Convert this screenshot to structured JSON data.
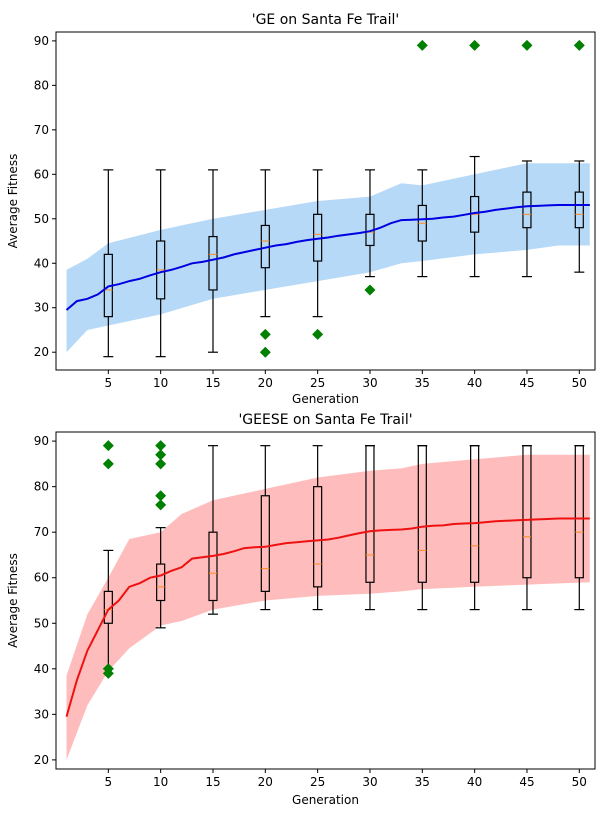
{
  "chart_data": [
    {
      "type": "line",
      "title": "'GE on Santa Fe Trail'",
      "xlabel": "Generation",
      "ylabel": "Average Fitness",
      "xlim": [
        0,
        51.5
      ],
      "ylim": [
        16,
        92
      ],
      "xticks": [
        5,
        10,
        15,
        20,
        25,
        30,
        35,
        40,
        45,
        50
      ],
      "yticks": [
        20,
        30,
        40,
        50,
        60,
        70,
        80,
        90
      ],
      "grid": false,
      "colors": {
        "line": "#0000e0",
        "band": "#99c9f5",
        "outlier": "#008000",
        "box": "#000000",
        "median": "#ff8c1a"
      },
      "series": [
        {
          "kind": "mean-line",
          "x": [
            1,
            2,
            3,
            4,
            5,
            6,
            7,
            8,
            9,
            10,
            11,
            12,
            13,
            14,
            15,
            16,
            17,
            18,
            19,
            20,
            21,
            22,
            23,
            24,
            25,
            26,
            27,
            28,
            29,
            30,
            31,
            32,
            33,
            34,
            35,
            36,
            37,
            38,
            39,
            40,
            41,
            42,
            43,
            44,
            45,
            46,
            47,
            48,
            49,
            50,
            51
          ],
          "values": [
            29.5,
            31.5,
            32,
            33,
            34.8,
            35.3,
            36,
            36.5,
            37.3,
            38,
            38.5,
            39.2,
            40,
            40.3,
            40.8,
            41.3,
            42,
            42.5,
            43,
            43.5,
            44,
            44.3,
            44.8,
            45.2,
            45.5,
            45.8,
            46.2,
            46.5,
            46.8,
            47.2,
            48,
            49,
            49.7,
            49.8,
            49.9,
            50,
            50.3,
            50.5,
            50.9,
            51.3,
            51.6,
            52,
            52.3,
            52.6,
            52.8,
            52.9,
            53,
            53.1,
            53.1,
            53.1,
            53.1
          ]
        },
        {
          "kind": "band",
          "x": [
            1,
            3,
            5,
            10,
            15,
            20,
            25,
            30,
            33,
            35,
            40,
            45,
            48,
            51
          ],
          "upper": [
            38.5,
            41,
            44.5,
            47.5,
            50,
            52,
            54,
            55,
            58,
            57.5,
            60,
            62.5,
            62.5,
            62.5
          ],
          "lower": [
            20,
            25,
            26,
            28.5,
            32,
            34,
            36,
            38,
            40,
            40.5,
            42,
            43,
            44,
            44
          ]
        }
      ],
      "boxes": [
        {
          "x": 5,
          "whislo": 19,
          "q1": 28,
          "med": 34,
          "q3": 42,
          "whishi": 61
        },
        {
          "x": 10,
          "whislo": 19,
          "q1": 32,
          "med": 38.5,
          "q3": 45,
          "whishi": 61
        },
        {
          "x": 15,
          "whislo": 20,
          "q1": 34,
          "med": 42,
          "q3": 46,
          "whishi": 61
        },
        {
          "x": 20,
          "whislo": 28,
          "q1": 39,
          "med": 45,
          "q3": 48.5,
          "whishi": 61
        },
        {
          "x": 25,
          "whislo": 28,
          "q1": 40.5,
          "med": 46.5,
          "q3": 51,
          "whishi": 61
        },
        {
          "x": 30,
          "whislo": 37,
          "q1": 44,
          "med": 47,
          "q3": 51,
          "whishi": 61
        },
        {
          "x": 35,
          "whislo": 37,
          "q1": 45,
          "med": 49,
          "q3": 53,
          "whishi": 61
        },
        {
          "x": 40,
          "whislo": 37,
          "q1": 47,
          "med": 51,
          "q3": 55,
          "whishi": 64
        },
        {
          "x": 45,
          "whislo": 37,
          "q1": 48,
          "med": 51,
          "q3": 56,
          "whishi": 63
        },
        {
          "x": 50,
          "whislo": 38,
          "q1": 48,
          "med": 51,
          "q3": 56,
          "whishi": 63
        }
      ],
      "outliers": [
        {
          "x": 20,
          "y": 24
        },
        {
          "x": 20,
          "y": 20
        },
        {
          "x": 25,
          "y": 24
        },
        {
          "x": 30,
          "y": 34
        },
        {
          "x": 35,
          "y": 89
        },
        {
          "x": 40,
          "y": 89
        },
        {
          "x": 45,
          "y": 89
        },
        {
          "x": 50,
          "y": 89
        }
      ]
    },
    {
      "type": "line",
      "title": "'GEESE on Santa Fe Trail'",
      "xlabel": "Generation",
      "ylabel": "Average Fitness",
      "xlim": [
        0,
        51.5
      ],
      "ylim": [
        18,
        92
      ],
      "xticks": [
        5,
        10,
        15,
        20,
        25,
        30,
        35,
        40,
        45,
        50
      ],
      "yticks": [
        20,
        30,
        40,
        50,
        60,
        70,
        80,
        90
      ],
      "grid": false,
      "colors": {
        "line": "#ee1111",
        "band": "#ffa0a0",
        "outlier": "#008000",
        "box": "#000000",
        "median": "#ff8c1a"
      },
      "series": [
        {
          "kind": "mean-line",
          "x": [
            1,
            2,
            3,
            4,
            5,
            6,
            7,
            8,
            9,
            10,
            11,
            12,
            13,
            14,
            15,
            16,
            17,
            18,
            19,
            20,
            21,
            22,
            23,
            24,
            25,
            26,
            27,
            28,
            29,
            30,
            31,
            32,
            33,
            34,
            35,
            36,
            37,
            38,
            39,
            40,
            41,
            42,
            43,
            44,
            45,
            46,
            47,
            48,
            49,
            50,
            51
          ],
          "values": [
            29.5,
            37.5,
            44,
            48.5,
            53,
            55,
            58,
            58.8,
            60,
            60.5,
            61.5,
            62.3,
            64.2,
            64.5,
            64.8,
            65.2,
            65.8,
            66.5,
            66.7,
            66.8,
            67.2,
            67.6,
            67.8,
            68,
            68.2,
            68.4,
            68.8,
            69.3,
            69.8,
            70.2,
            70.4,
            70.5,
            70.6,
            70.8,
            71.2,
            71.4,
            71.5,
            71.8,
            71.9,
            72,
            72.2,
            72.4,
            72.5,
            72.6,
            72.7,
            72.8,
            72.9,
            73,
            73,
            73,
            73
          ]
        },
        {
          "kind": "band",
          "x": [
            1,
            3,
            5,
            7,
            10,
            12,
            15,
            20,
            25,
            30,
            33,
            35,
            40,
            45,
            51
          ],
          "upper": [
            38.5,
            52,
            60,
            68.5,
            70,
            74,
            77,
            79.5,
            82,
            83.5,
            84,
            85,
            86,
            87,
            87
          ],
          "lower": [
            20,
            32,
            39.5,
            44.5,
            49.5,
            50.5,
            53,
            55,
            56,
            56.5,
            57,
            57.5,
            58,
            58.5,
            59
          ]
        }
      ],
      "boxes": [
        {
          "x": 5,
          "whislo": 40,
          "q1": 50,
          "med": 53,
          "q3": 57,
          "whishi": 66
        },
        {
          "x": 10,
          "whislo": 49,
          "q1": 55,
          "med": 58,
          "q3": 63,
          "whishi": 71
        },
        {
          "x": 15,
          "whislo": 52,
          "q1": 55,
          "med": 61,
          "q3": 70,
          "whishi": 89
        },
        {
          "x": 20,
          "whislo": 53,
          "q1": 57,
          "med": 62,
          "q3": 78,
          "whishi": 89
        },
        {
          "x": 25,
          "whislo": 53,
          "q1": 58,
          "med": 63,
          "q3": 80,
          "whishi": 89
        },
        {
          "x": 30,
          "whislo": 53,
          "q1": 59,
          "med": 65,
          "q3": 89,
          "whishi": 89
        },
        {
          "x": 35,
          "whislo": 53,
          "q1": 59,
          "med": 66,
          "q3": 89,
          "whishi": 89
        },
        {
          "x": 40,
          "whislo": 53,
          "q1": 59,
          "med": 67,
          "q3": 89,
          "whishi": 89
        },
        {
          "x": 45,
          "whislo": 53,
          "q1": 60,
          "med": 69,
          "q3": 89,
          "whishi": 89
        },
        {
          "x": 50,
          "whislo": 53,
          "q1": 60,
          "med": 70,
          "q3": 89,
          "whishi": 89
        }
      ],
      "outliers": [
        {
          "x": 5,
          "y": 89
        },
        {
          "x": 5,
          "y": 85
        },
        {
          "x": 5,
          "y": 40
        },
        {
          "x": 5,
          "y": 39
        },
        {
          "x": 10,
          "y": 89
        },
        {
          "x": 10,
          "y": 87
        },
        {
          "x": 10,
          "y": 85
        },
        {
          "x": 10,
          "y": 78
        },
        {
          "x": 10,
          "y": 76
        }
      ]
    }
  ]
}
